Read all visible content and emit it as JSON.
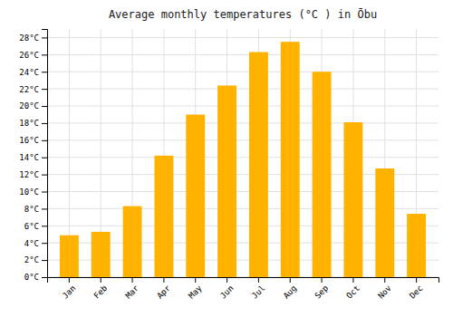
{
  "chart_data": {
    "type": "bar",
    "title": "Average monthly temperatures (°C ) in Ōbu",
    "categories": [
      "Jan",
      "Feb",
      "Mar",
      "Apr",
      "May",
      "Jun",
      "Jul",
      "Aug",
      "Sep",
      "Oct",
      "Nov",
      "Dec"
    ],
    "values": [
      4.9,
      5.3,
      8.3,
      14.2,
      19.0,
      22.4,
      26.3,
      27.5,
      24.0,
      18.1,
      12.7,
      7.4
    ],
    "color": "#FFB300",
    "ylim": [
      0,
      29
    ],
    "yticks": [
      {
        "value": 0,
        "label": "0°C"
      },
      {
        "value": 2,
        "label": "2°C"
      },
      {
        "value": 4,
        "label": "4°C"
      },
      {
        "value": 6,
        "label": "6°C"
      },
      {
        "value": 8,
        "label": "8°C"
      },
      {
        "value": 10,
        "label": "10°C"
      },
      {
        "value": 12,
        "label": "12°C"
      },
      {
        "value": 14,
        "label": "14°C"
      },
      {
        "value": 16,
        "label": "16°C"
      },
      {
        "value": 18,
        "label": "18°C"
      },
      {
        "value": 20,
        "label": "20°C"
      },
      {
        "value": 22,
        "label": "22°C"
      },
      {
        "value": 24,
        "label": "24°C"
      },
      {
        "value": 26,
        "label": "26°C"
      },
      {
        "value": 28,
        "label": "28°C"
      }
    ],
    "grid": true
  }
}
